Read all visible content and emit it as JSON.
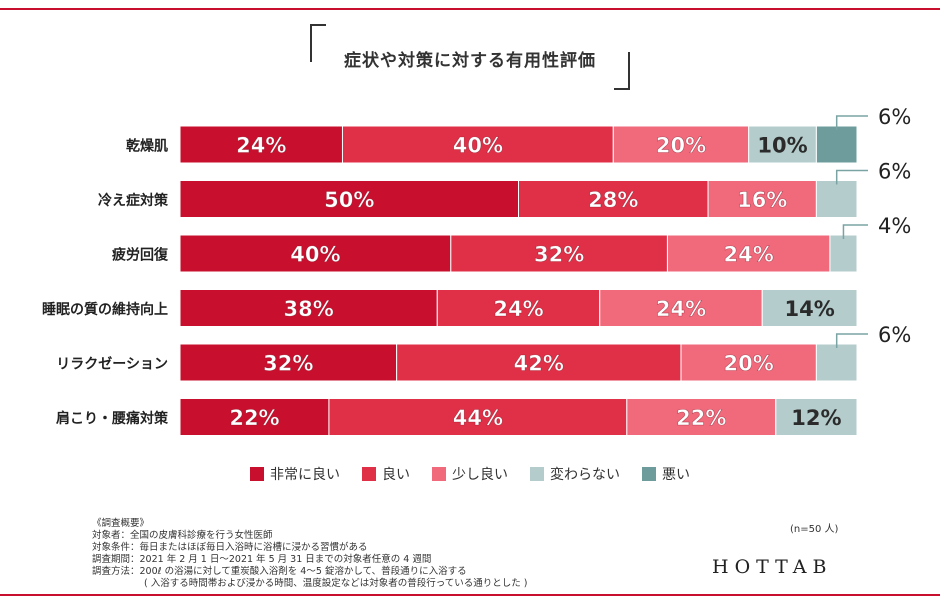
{
  "title": "症状や対策に対する有用性評価",
  "chart_data": {
    "type": "bar",
    "orientation": "horizontal-stacked-100",
    "title": "症状や対策に対する有用性評価",
    "categories": [
      "乾燥肌",
      "冷え症対策",
      "疲労回復",
      "睡眠の質の維持向上",
      "リラクゼーション",
      "肩こり・腰痛対策"
    ],
    "series": [
      {
        "name": "非常に良い",
        "color": "#c8102e",
        "values": [
          24,
          50,
          40,
          38,
          32,
          22
        ]
      },
      {
        "name": "良い",
        "color": "#e03048",
        "values": [
          40,
          28,
          32,
          24,
          42,
          44
        ]
      },
      {
        "name": "少し良い",
        "color": "#f06a7c",
        "values": [
          20,
          16,
          24,
          24,
          20,
          22
        ]
      },
      {
        "name": "変わらない",
        "color": "#b4cccc",
        "values": [
          10,
          6,
          4,
          14,
          6,
          12
        ]
      },
      {
        "name": "悪い",
        "color": "#6e9c9c",
        "values": [
          6,
          0,
          0,
          0,
          0,
          0
        ]
      }
    ],
    "value_suffix": "%",
    "xlim": [
      0,
      100
    ],
    "grid": false,
    "legend_position": "bottom"
  },
  "notes": {
    "heading": "《調査概要》",
    "target": "対象者：全国の皮膚科診療を行う女性医師",
    "condition": "対象条件：毎日またはほぼ毎日入浴時に浴槽に浸かる習慣がある",
    "period": "調査期間：2021 年 2 月 1 日〜2021 年 5 月 31 日までの対象者任意の 4 週間",
    "method": "調査方法：200ℓ の浴湯に対して重炭酸入浴剤を 4〜5 錠溶かして、普段通りに入浴する",
    "method_note": "( 入浴する時間帯および浸かる時間、温度設定などは対象者の普段行っている通りとした )",
    "sample": "(n=50 人)"
  },
  "brand": "HOTTAB"
}
